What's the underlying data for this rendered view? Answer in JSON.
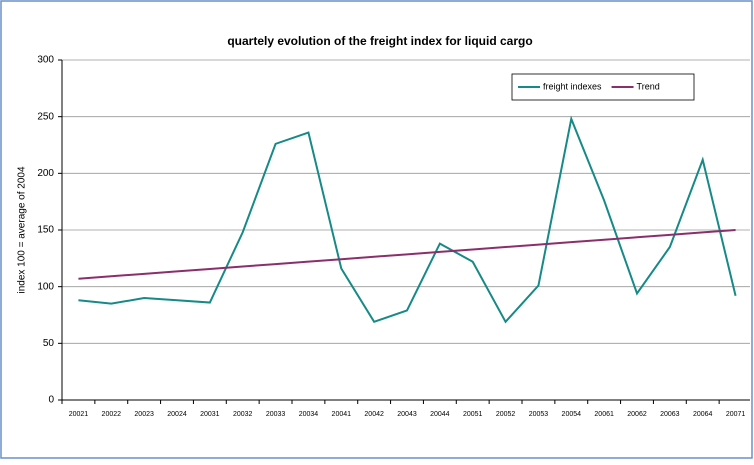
{
  "chart_data": {
    "type": "line",
    "title": "quartely evolution of the freight index for liquid cargo",
    "y_label": "index 100  = average of 2004",
    "categories": [
      "20021",
      "20022",
      "20023",
      "20024",
      "20031",
      "20032",
      "20033",
      "20034",
      "20041",
      "20042",
      "20043",
      "20044",
      "20051",
      "20052",
      "20053",
      "20054",
      "20061",
      "20062",
      "20063",
      "20064",
      "20071"
    ],
    "series": [
      {
        "name": "freight indexes",
        "color": "#168a86",
        "values": [
          88,
          85,
          90,
          88,
          86,
          148,
          226,
          236,
          116,
          69,
          79,
          138,
          122,
          69,
          101,
          248,
          176,
          94,
          135,
          212,
          92
        ]
      },
      {
        "name": "Trend",
        "color": "#8b2f6b",
        "values": [
          107,
          109.2,
          111.3,
          113.5,
          115.6,
          117.8,
          119.9,
          122.1,
          124.2,
          126.4,
          128.5,
          130.7,
          132.8,
          135,
          137.1,
          139.3,
          141.4,
          143.6,
          145.7,
          147.9,
          150
        ]
      }
    ],
    "ylim": [
      0,
      300
    ],
    "yticks": [
      0,
      50,
      100,
      150,
      200,
      250,
      300
    ],
    "grid": true,
    "legend": "top-right"
  }
}
